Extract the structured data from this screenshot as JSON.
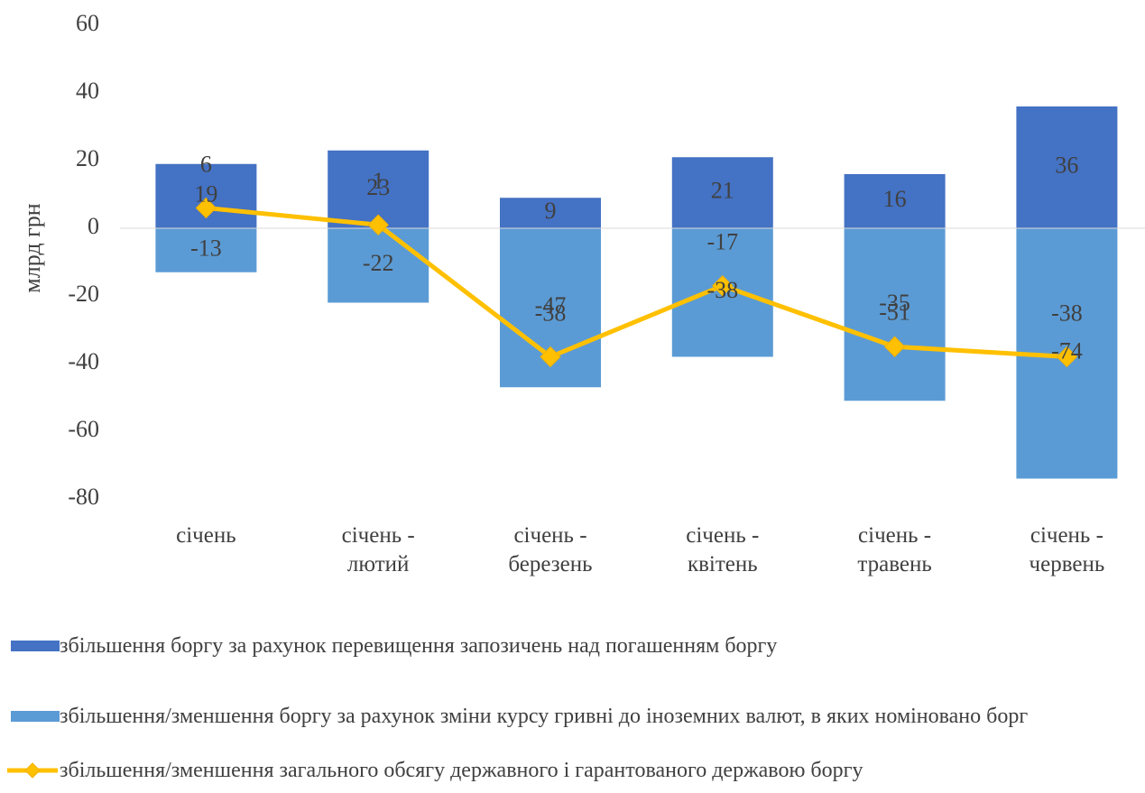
{
  "chart_data": {
    "type": "bar",
    "stacked": true,
    "y_label": "млрд грн",
    "categories": [
      "січень",
      "січень - лютий",
      "січень - березень",
      "січень - квітень",
      "січень - травень",
      "січень - червень"
    ],
    "series": [
      {
        "name": "збільшення боргу за рахунок перевищення запозичень над погашенням боргу",
        "type": "bar",
        "color": "#4472c4",
        "values": [
          19,
          23,
          9,
          21,
          16,
          36
        ]
      },
      {
        "name": "збільшення/зменшення боргу за рахунок зміни курсу гривні до іноземних валют, в яких номіновано борг",
        "type": "bar",
        "color": "#5b9bd5",
        "values": [
          -13,
          -22,
          -47,
          -38,
          -51,
          -74
        ]
      },
      {
        "name": "збільшення/зменшення загального обсягу державного і гарантованого державою боргу",
        "type": "line",
        "color": "#ffc000",
        "values": [
          6,
          1,
          -38,
          -17,
          -35,
          -38
        ]
      }
    ],
    "ylim": [
      -80,
      60
    ],
    "yticks": [
      -80,
      -60,
      -40,
      -20,
      0,
      20,
      40,
      60
    ],
    "grid": false,
    "legend": "bottom"
  }
}
